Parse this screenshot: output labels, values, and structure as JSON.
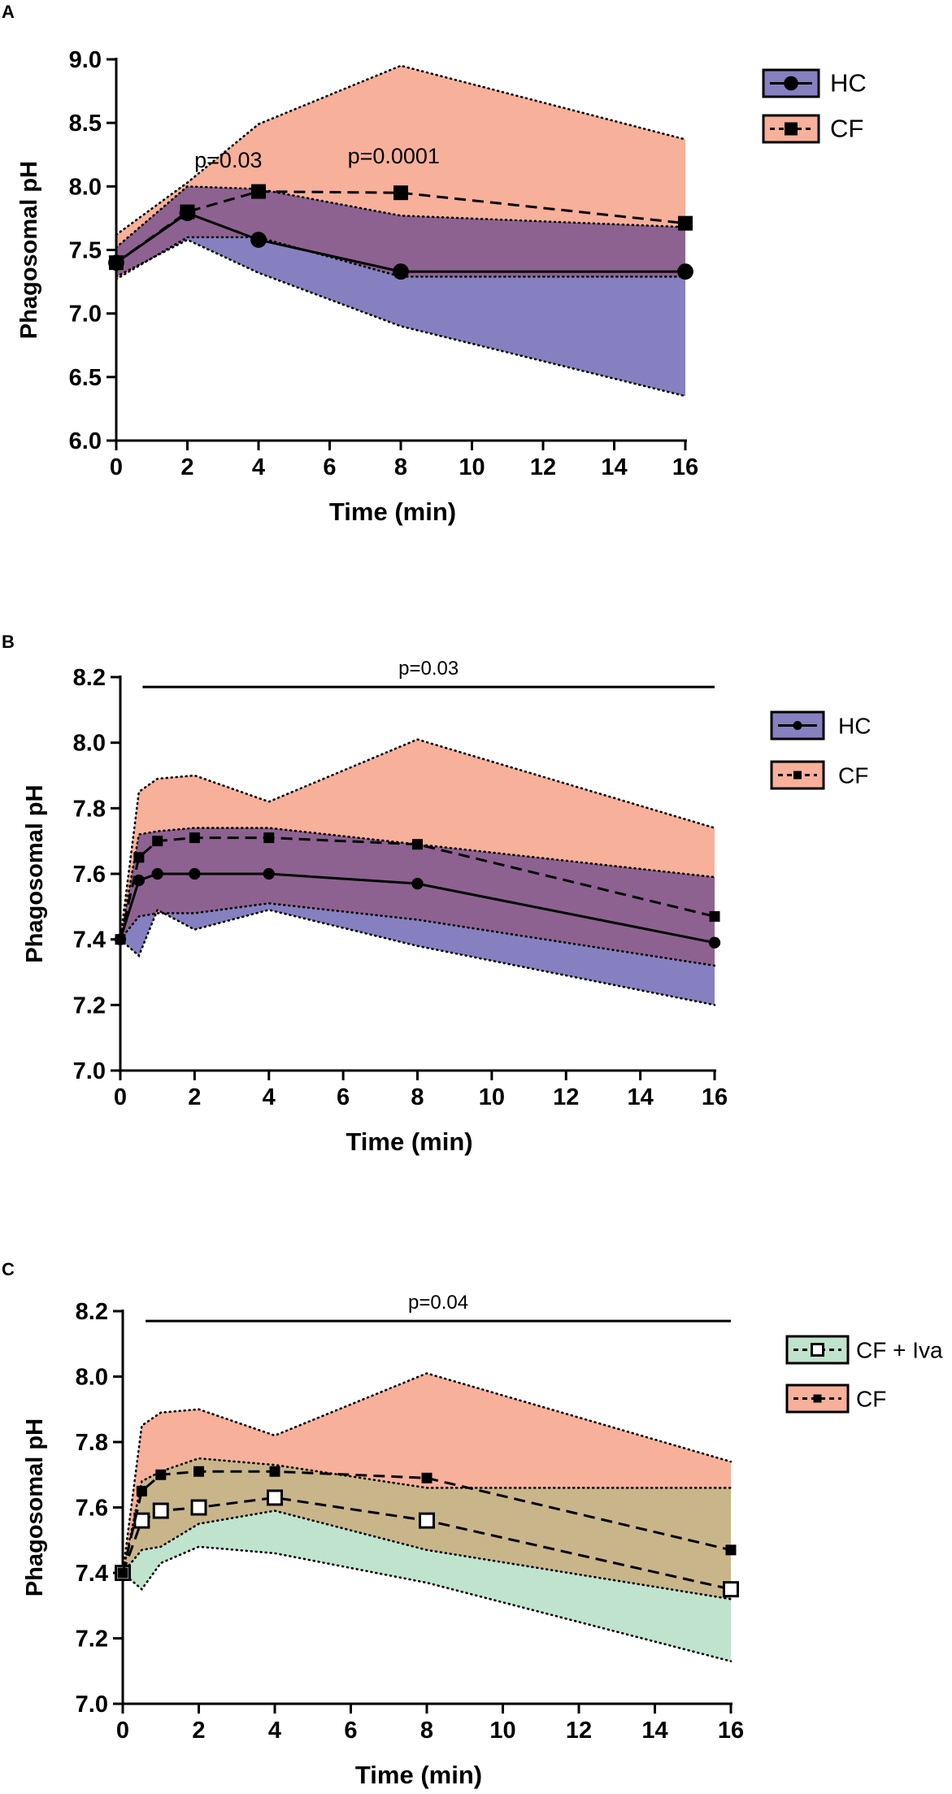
{
  "colors": {
    "hc_fill": "#8680c0",
    "cf_fill": "#f7b09a",
    "overlap_fill": "#8d6291",
    "iva_fill": "#bfe3cc",
    "cf_iva_overlap": "#c9b58a",
    "line": "#000000"
  },
  "chart_data": [
    {
      "type": "line",
      "panel_label": "A",
      "xlabel": "Time (min)",
      "ylabel": "Phagosomal pH",
      "xlim": [
        0,
        16
      ],
      "ylim": [
        6.0,
        9.0
      ],
      "xticks": [
        "0",
        "2",
        "4",
        "6",
        "8",
        "10",
        "12",
        "14",
        "16"
      ],
      "yticks": [
        "6.0",
        "6.5",
        "7.0",
        "7.5",
        "8.0",
        "8.5",
        "9.0"
      ],
      "series": [
        {
          "name": "HC",
          "marker": "circle",
          "dash": "solid",
          "fill": "hc",
          "x": [
            0,
            2,
            4,
            8,
            16
          ],
          "values": [
            7.4,
            7.79,
            7.58,
            7.33,
            7.33
          ],
          "upper": [
            7.52,
            8.0,
            7.98,
            7.77,
            7.68
          ],
          "lower": [
            7.29,
            7.58,
            7.32,
            6.9,
            6.35
          ]
        },
        {
          "name": "CF",
          "marker": "square",
          "dash": "dashed",
          "fill": "cf",
          "x": [
            0,
            2,
            4,
            8,
            16
          ],
          "values": [
            7.4,
            7.8,
            7.96,
            7.95,
            7.71
          ],
          "upper": [
            7.62,
            8.03,
            8.49,
            8.95,
            8.37
          ],
          "lower": [
            7.27,
            7.6,
            7.6,
            7.29,
            7.29
          ]
        }
      ],
      "annotations": [
        {
          "text": "p=0.03",
          "x": 3.15,
          "y": 8.15
        },
        {
          "text": "p=0.0001",
          "x": 7.8,
          "y": 8.18
        }
      ],
      "legend": [
        {
          "label": "HC",
          "fill": "hc",
          "marker": "circle",
          "dash": "solid"
        },
        {
          "label": "CF",
          "fill": "cf",
          "marker": "square",
          "dash": "dashed"
        }
      ]
    },
    {
      "type": "line",
      "panel_label": "B",
      "xlabel": "Time (min)",
      "ylabel": "Phagosomal pH",
      "xlim": [
        0,
        16
      ],
      "ylim": [
        7.0,
        8.2
      ],
      "xticks": [
        "0",
        "2",
        "4",
        "6",
        "8",
        "10",
        "12",
        "14",
        "16"
      ],
      "yticks": [
        "7.0",
        "7.2",
        "7.4",
        "7.6",
        "7.8",
        "8.0",
        "8.2"
      ],
      "series": [
        {
          "name": "HC",
          "marker": "circle",
          "dash": "solid",
          "fill": "hc",
          "x": [
            0,
            0.5,
            1,
            2,
            4,
            8,
            16
          ],
          "values": [
            7.4,
            7.58,
            7.6,
            7.6,
            7.6,
            7.57,
            7.39
          ],
          "upper": [
            7.4,
            7.72,
            7.73,
            7.74,
            7.74,
            7.69,
            7.59
          ],
          "lower": [
            7.4,
            7.35,
            7.49,
            7.43,
            7.49,
            7.38,
            7.2
          ]
        },
        {
          "name": "CF",
          "marker": "square",
          "dash": "dashed",
          "fill": "cf",
          "x": [
            0,
            0.5,
            1,
            2,
            4,
            8,
            16
          ],
          "values": [
            7.4,
            7.65,
            7.7,
            7.71,
            7.71,
            7.69,
            7.47
          ],
          "upper": [
            7.4,
            7.85,
            7.89,
            7.9,
            7.82,
            8.01,
            7.74
          ],
          "lower": [
            7.4,
            7.47,
            7.48,
            7.48,
            7.51,
            7.46,
            7.32
          ]
        }
      ],
      "significance": {
        "text": "p=0.03",
        "x_start": 0.6,
        "x_end": 16,
        "y": 8.17
      },
      "legend": [
        {
          "label": "HC",
          "fill": "hc",
          "marker": "circle",
          "dash": "solid"
        },
        {
          "label": "CF",
          "fill": "cf",
          "marker": "square",
          "dash": "dashed"
        }
      ]
    },
    {
      "type": "line",
      "panel_label": "C",
      "xlabel": "Time (min)",
      "ylabel": "Phagosomal pH",
      "xlim": [
        0,
        16
      ],
      "ylim": [
        7.0,
        8.2
      ],
      "xticks": [
        "0",
        "2",
        "4",
        "6",
        "8",
        "10",
        "12",
        "14",
        "16"
      ],
      "yticks": [
        "7.0",
        "7.2",
        "7.4",
        "7.6",
        "7.8",
        "8.0",
        "8.2"
      ],
      "series": [
        {
          "name": "CF + Iva",
          "marker": "open-square",
          "dash": "dashed",
          "fill": "iva",
          "x": [
            0,
            0.5,
            1,
            2,
            4,
            8,
            16
          ],
          "values": [
            7.4,
            7.56,
            7.59,
            7.6,
            7.63,
            7.56,
            7.35
          ],
          "upper": [
            7.4,
            7.68,
            7.71,
            7.75,
            7.73,
            7.66,
            7.66
          ],
          "lower": [
            7.4,
            7.35,
            7.43,
            7.48,
            7.46,
            7.37,
            7.13
          ]
        },
        {
          "name": "CF",
          "marker": "square",
          "dash": "dashed",
          "fill": "cf",
          "x": [
            0,
            0.5,
            1,
            2,
            4,
            8,
            16
          ],
          "values": [
            7.4,
            7.65,
            7.7,
            7.71,
            7.71,
            7.69,
            7.47
          ],
          "upper": [
            7.4,
            7.85,
            7.89,
            7.9,
            7.82,
            8.01,
            7.74
          ],
          "lower": [
            7.4,
            7.47,
            7.48,
            7.55,
            7.59,
            7.47,
            7.32
          ]
        }
      ],
      "significance": {
        "text": "p=0.04",
        "x_start": 0.6,
        "x_end": 16,
        "y": 8.17
      },
      "legend": [
        {
          "label": "CF + Iva",
          "fill": "iva",
          "marker": "open-square",
          "dash": "dashed"
        },
        {
          "label": "CF",
          "fill": "cf",
          "marker": "square",
          "dash": "dashed"
        }
      ]
    }
  ]
}
